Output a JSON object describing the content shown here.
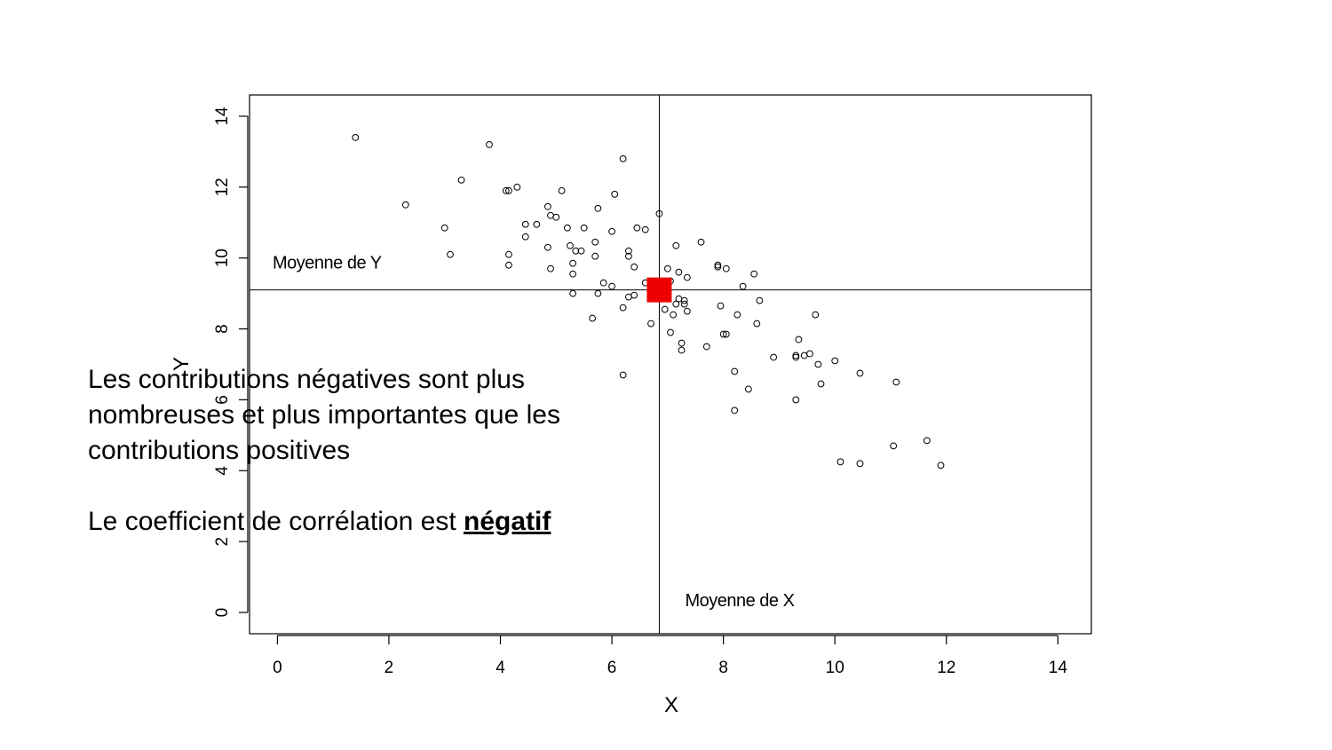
{
  "chart_data": {
    "type": "scatter",
    "xlabel": "X",
    "ylabel": "Y",
    "xlim": [
      -0.5,
      14.6
    ],
    "ylim": [
      -0.6,
      14.6
    ],
    "xticks": [
      0,
      2,
      4,
      6,
      8,
      10,
      12,
      14
    ],
    "yticks": [
      0,
      2,
      4,
      6,
      8,
      10,
      12,
      14
    ],
    "tick_labels_x": [
      "0",
      "2",
      "4",
      "6",
      "8",
      "10",
      "12",
      "14"
    ],
    "tick_labels_y": [
      "0",
      "2",
      "4",
      "6",
      "8",
      "10",
      "12",
      "14"
    ],
    "mean_x": 6.85,
    "mean_y": 9.1,
    "mean_x_label": "Moyenne de X",
    "mean_y_label": "Moyenne de Y",
    "mean_marker_color": "#ee0000",
    "points": [
      [
        1.4,
        13.4
      ],
      [
        3.8,
        13.2
      ],
      [
        6.2,
        12.8
      ],
      [
        2.3,
        11.5
      ],
      [
        3.3,
        12.2
      ],
      [
        4.3,
        12.0
      ],
      [
        4.1,
        11.9
      ],
      [
        4.15,
        11.9
      ],
      [
        5.1,
        11.9
      ],
      [
        6.05,
        11.8
      ],
      [
        4.85,
        11.45
      ],
      [
        5.75,
        11.4
      ],
      [
        6.85,
        11.25
      ],
      [
        4.9,
        11.2
      ],
      [
        5.0,
        11.15
      ],
      [
        4.45,
        10.95
      ],
      [
        4.65,
        10.95
      ],
      [
        3.0,
        10.85
      ],
      [
        5.2,
        10.85
      ],
      [
        5.5,
        10.85
      ],
      [
        6.45,
        10.85
      ],
      [
        6.6,
        10.8
      ],
      [
        6.0,
        10.75
      ],
      [
        4.45,
        10.6
      ],
      [
        5.7,
        10.45
      ],
      [
        7.15,
        10.35
      ],
      [
        7.6,
        10.45
      ],
      [
        5.25,
        10.35
      ],
      [
        4.85,
        10.3
      ],
      [
        6.3,
        10.2
      ],
      [
        5.35,
        10.2
      ],
      [
        5.45,
        10.2
      ],
      [
        3.1,
        10.1
      ],
      [
        4.15,
        10.1
      ],
      [
        5.7,
        10.05
      ],
      [
        6.3,
        10.05
      ],
      [
        5.3,
        9.85
      ],
      [
        4.15,
        9.8
      ],
      [
        7.9,
        9.8
      ],
      [
        7.9,
        9.75
      ],
      [
        6.4,
        9.75
      ],
      [
        7.0,
        9.7
      ],
      [
        8.05,
        9.7
      ],
      [
        4.9,
        9.7
      ],
      [
        7.2,
        9.6
      ],
      [
        8.55,
        9.55
      ],
      [
        5.3,
        9.55
      ],
      [
        7.35,
        9.45
      ],
      [
        7.05,
        9.35
      ],
      [
        6.6,
        9.3
      ],
      [
        5.85,
        9.3
      ],
      [
        6.0,
        9.2
      ],
      [
        8.35,
        9.2
      ],
      [
        7.0,
        9.0
      ],
      [
        5.3,
        9.0
      ],
      [
        5.75,
        9.0
      ],
      [
        6.4,
        8.95
      ],
      [
        6.3,
        8.9
      ],
      [
        7.2,
        8.85
      ],
      [
        7.3,
        8.8
      ],
      [
        7.15,
        8.7
      ],
      [
        8.65,
        8.8
      ],
      [
        7.3,
        8.7
      ],
      [
        7.95,
        8.65
      ],
      [
        6.2,
        8.6
      ],
      [
        6.95,
        8.55
      ],
      [
        7.35,
        8.5
      ],
      [
        7.1,
        8.4
      ],
      [
        8.25,
        8.4
      ],
      [
        9.65,
        8.4
      ],
      [
        5.65,
        8.3
      ],
      [
        6.7,
        8.15
      ],
      [
        8.6,
        8.15
      ],
      [
        7.05,
        7.9
      ],
      [
        8.0,
        7.85
      ],
      [
        8.05,
        7.85
      ],
      [
        9.35,
        7.7
      ],
      [
        7.25,
        7.6
      ],
      [
        7.7,
        7.5
      ],
      [
        7.25,
        7.4
      ],
      [
        9.55,
        7.3
      ],
      [
        9.45,
        7.25
      ],
      [
        9.3,
        7.25
      ],
      [
        8.9,
        7.2
      ],
      [
        9.3,
        7.2
      ],
      [
        10.0,
        7.1
      ],
      [
        9.7,
        7.0
      ],
      [
        8.2,
        6.8
      ],
      [
        10.45,
        6.75
      ],
      [
        6.2,
        6.7
      ],
      [
        11.1,
        6.5
      ],
      [
        9.75,
        6.45
      ],
      [
        8.45,
        6.3
      ],
      [
        9.3,
        6.0
      ],
      [
        8.2,
        5.7
      ],
      [
        11.65,
        4.85
      ],
      [
        11.05,
        4.7
      ],
      [
        10.1,
        4.25
      ],
      [
        10.45,
        4.2
      ],
      [
        11.9,
        4.15
      ]
    ]
  },
  "text": {
    "line1": "Les contributions négatives sont plus",
    "line2": "nombreuses et plus importantes que les",
    "line3": "contributions positives",
    "line4_prefix": "Le coefficient de corrélation est ",
    "line4_emphasis": "négatif"
  }
}
